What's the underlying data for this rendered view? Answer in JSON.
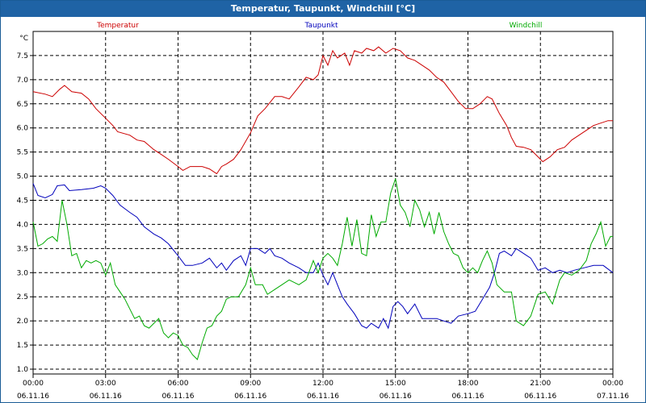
{
  "window": {
    "title": "Temperatur, Taupunkt, Windchill [°C]"
  },
  "chart_data": {
    "type": "line",
    "title": "Temperatur, Taupunkt, Windchill [°C]",
    "ylabel": "°C",
    "xlabel": "",
    "ylim": [
      0.9,
      8.0
    ],
    "xlim": [
      0,
      24
    ],
    "grid": true,
    "legend_placement": "top",
    "y_ticks": [
      1.0,
      1.5,
      2.0,
      2.5,
      3.0,
      3.5,
      4.0,
      4.5,
      5.0,
      5.5,
      6.0,
      6.5,
      7.0,
      7.5
    ],
    "x_ticks": [
      {
        "time": "00:00",
        "date": "06.11.16"
      },
      {
        "time": "03:00",
        "date": "06.11.16"
      },
      {
        "time": "06:00",
        "date": "06.11.16"
      },
      {
        "time": "09:00",
        "date": "06.11.16"
      },
      {
        "time": "12:00",
        "date": "06.11.16"
      },
      {
        "time": "15:00",
        "date": "06.11.16"
      },
      {
        "time": "18:00",
        "date": "06.11.16"
      },
      {
        "time": "21:00",
        "date": "06.11.16"
      },
      {
        "time": "00:00",
        "date": "07.11.16"
      }
    ],
    "series": [
      {
        "name": "Temperatur",
        "color": "#cc0000",
        "points": [
          [
            0,
            6.75
          ],
          [
            0.5,
            6.7
          ],
          [
            0.8,
            6.65
          ],
          [
            1.1,
            6.8
          ],
          [
            1.3,
            6.88
          ],
          [
            1.6,
            6.75
          ],
          [
            2.0,
            6.72
          ],
          [
            2.3,
            6.6
          ],
          [
            2.6,
            6.4
          ],
          [
            3.0,
            6.2
          ],
          [
            3.3,
            6.05
          ],
          [
            3.5,
            5.92
          ],
          [
            4.0,
            5.85
          ],
          [
            4.3,
            5.75
          ],
          [
            4.6,
            5.72
          ],
          [
            5.0,
            5.55
          ],
          [
            5.3,
            5.45
          ],
          [
            5.6,
            5.35
          ],
          [
            6.0,
            5.2
          ],
          [
            6.2,
            5.12
          ],
          [
            6.5,
            5.2
          ],
          [
            7.0,
            5.2
          ],
          [
            7.3,
            5.15
          ],
          [
            7.6,
            5.05
          ],
          [
            7.8,
            5.2
          ],
          [
            8.0,
            5.25
          ],
          [
            8.3,
            5.35
          ],
          [
            8.6,
            5.55
          ],
          [
            9.0,
            5.9
          ],
          [
            9.3,
            6.25
          ],
          [
            9.6,
            6.4
          ],
          [
            10.0,
            6.65
          ],
          [
            10.3,
            6.65
          ],
          [
            10.6,
            6.6
          ],
          [
            11.0,
            6.85
          ],
          [
            11.3,
            7.05
          ],
          [
            11.6,
            7.0
          ],
          [
            11.8,
            7.1
          ],
          [
            12.0,
            7.5
          ],
          [
            12.2,
            7.3
          ],
          [
            12.4,
            7.6
          ],
          [
            12.6,
            7.45
          ],
          [
            12.9,
            7.55
          ],
          [
            13.1,
            7.3
          ],
          [
            13.3,
            7.6
          ],
          [
            13.6,
            7.55
          ],
          [
            13.8,
            7.65
          ],
          [
            14.1,
            7.6
          ],
          [
            14.3,
            7.68
          ],
          [
            14.6,
            7.55
          ],
          [
            14.9,
            7.65
          ],
          [
            15.2,
            7.6
          ],
          [
            15.5,
            7.45
          ],
          [
            15.8,
            7.4
          ],
          [
            16.1,
            7.3
          ],
          [
            16.4,
            7.2
          ],
          [
            16.7,
            7.05
          ],
          [
            17.0,
            6.95
          ],
          [
            17.3,
            6.75
          ],
          [
            17.6,
            6.55
          ],
          [
            17.9,
            6.4
          ],
          [
            18.2,
            6.4
          ],
          [
            18.5,
            6.5
          ],
          [
            18.8,
            6.65
          ],
          [
            19.0,
            6.6
          ],
          [
            19.3,
            6.3
          ],
          [
            19.6,
            6.05
          ],
          [
            19.8,
            5.8
          ],
          [
            20.0,
            5.62
          ],
          [
            20.3,
            5.6
          ],
          [
            20.6,
            5.55
          ],
          [
            20.9,
            5.4
          ],
          [
            21.1,
            5.3
          ],
          [
            21.4,
            5.4
          ],
          [
            21.7,
            5.55
          ],
          [
            22.0,
            5.6
          ],
          [
            22.3,
            5.75
          ],
          [
            22.6,
            5.85
          ],
          [
            22.9,
            5.95
          ],
          [
            23.2,
            6.05
          ],
          [
            23.5,
            6.1
          ],
          [
            23.8,
            6.15
          ],
          [
            24.0,
            6.15
          ]
        ]
      },
      {
        "name": "Taupunkt",
        "color": "#0000bb",
        "points": [
          [
            0,
            4.85
          ],
          [
            0.2,
            4.6
          ],
          [
            0.5,
            4.55
          ],
          [
            0.8,
            4.62
          ],
          [
            1.0,
            4.8
          ],
          [
            1.3,
            4.82
          ],
          [
            1.5,
            4.7
          ],
          [
            2.0,
            4.72
          ],
          [
            2.5,
            4.75
          ],
          [
            2.8,
            4.8
          ],
          [
            3.0,
            4.75
          ],
          [
            3.3,
            4.6
          ],
          [
            3.6,
            4.4
          ],
          [
            4.0,
            4.25
          ],
          [
            4.3,
            4.15
          ],
          [
            4.6,
            3.95
          ],
          [
            5.0,
            3.8
          ],
          [
            5.3,
            3.72
          ],
          [
            5.6,
            3.6
          ],
          [
            6.0,
            3.35
          ],
          [
            6.3,
            3.15
          ],
          [
            6.6,
            3.15
          ],
          [
            7.0,
            3.2
          ],
          [
            7.3,
            3.3
          ],
          [
            7.6,
            3.1
          ],
          [
            7.8,
            3.2
          ],
          [
            8.0,
            3.05
          ],
          [
            8.3,
            3.25
          ],
          [
            8.6,
            3.35
          ],
          [
            8.8,
            3.15
          ],
          [
            9.0,
            3.5
          ],
          [
            9.3,
            3.5
          ],
          [
            9.6,
            3.4
          ],
          [
            9.8,
            3.5
          ],
          [
            10.0,
            3.35
          ],
          [
            10.3,
            3.3
          ],
          [
            10.6,
            3.2
          ],
          [
            11.0,
            3.1
          ],
          [
            11.3,
            3.0
          ],
          [
            11.6,
            3.0
          ],
          [
            11.8,
            3.2
          ],
          [
            12.0,
            2.95
          ],
          [
            12.2,
            2.75
          ],
          [
            12.4,
            3.0
          ],
          [
            12.6,
            2.75
          ],
          [
            12.8,
            2.5
          ],
          [
            13.0,
            2.35
          ],
          [
            13.3,
            2.15
          ],
          [
            13.6,
            1.9
          ],
          [
            13.8,
            1.85
          ],
          [
            14.0,
            1.95
          ],
          [
            14.3,
            1.85
          ],
          [
            14.5,
            2.05
          ],
          [
            14.7,
            1.85
          ],
          [
            14.9,
            2.3
          ],
          [
            15.1,
            2.4
          ],
          [
            15.3,
            2.3
          ],
          [
            15.5,
            2.15
          ],
          [
            15.8,
            2.35
          ],
          [
            16.1,
            2.05
          ],
          [
            16.4,
            2.05
          ],
          [
            16.7,
            2.05
          ],
          [
            17.0,
            2.0
          ],
          [
            17.3,
            1.95
          ],
          [
            17.6,
            2.1
          ],
          [
            18.0,
            2.15
          ],
          [
            18.3,
            2.2
          ],
          [
            18.6,
            2.45
          ],
          [
            18.9,
            2.7
          ],
          [
            19.1,
            3.0
          ],
          [
            19.3,
            3.4
          ],
          [
            19.5,
            3.45
          ],
          [
            19.8,
            3.35
          ],
          [
            20.0,
            3.5
          ],
          [
            20.3,
            3.4
          ],
          [
            20.6,
            3.3
          ],
          [
            20.9,
            3.05
          ],
          [
            21.2,
            3.1
          ],
          [
            21.5,
            3.0
          ],
          [
            21.8,
            3.05
          ],
          [
            22.1,
            3.0
          ],
          [
            22.4,
            3.05
          ],
          [
            22.8,
            3.1
          ],
          [
            23.2,
            3.15
          ],
          [
            23.6,
            3.15
          ],
          [
            24.0,
            3.0
          ]
        ]
      },
      {
        "name": "Windchill",
        "color": "#00aa00",
        "points": [
          [
            0,
            4.05
          ],
          [
            0.2,
            3.55
          ],
          [
            0.4,
            3.6
          ],
          [
            0.6,
            3.7
          ],
          [
            0.8,
            3.75
          ],
          [
            1.0,
            3.65
          ],
          [
            1.2,
            4.5
          ],
          [
            1.4,
            4.0
          ],
          [
            1.6,
            3.35
          ],
          [
            1.8,
            3.4
          ],
          [
            2.0,
            3.1
          ],
          [
            2.2,
            3.25
          ],
          [
            2.4,
            3.2
          ],
          [
            2.6,
            3.25
          ],
          [
            2.8,
            3.2
          ],
          [
            3.0,
            2.95
          ],
          [
            3.2,
            3.2
          ],
          [
            3.4,
            2.75
          ],
          [
            3.6,
            2.6
          ],
          [
            3.8,
            2.45
          ],
          [
            4.0,
            2.25
          ],
          [
            4.2,
            2.05
          ],
          [
            4.4,
            2.1
          ],
          [
            4.6,
            1.9
          ],
          [
            4.8,
            1.85
          ],
          [
            5.0,
            1.95
          ],
          [
            5.2,
            2.05
          ],
          [
            5.4,
            1.75
          ],
          [
            5.6,
            1.65
          ],
          [
            5.8,
            1.75
          ],
          [
            6.0,
            1.7
          ],
          [
            6.2,
            1.5
          ],
          [
            6.4,
            1.45
          ],
          [
            6.6,
            1.3
          ],
          [
            6.8,
            1.2
          ],
          [
            7.0,
            1.55
          ],
          [
            7.2,
            1.85
          ],
          [
            7.4,
            1.9
          ],
          [
            7.6,
            2.1
          ],
          [
            7.8,
            2.2
          ],
          [
            8.0,
            2.45
          ],
          [
            8.2,
            2.5
          ],
          [
            8.5,
            2.5
          ],
          [
            8.8,
            2.75
          ],
          [
            9.0,
            3.1
          ],
          [
            9.2,
            2.75
          ],
          [
            9.5,
            2.75
          ],
          [
            9.7,
            2.55
          ],
          [
            10.0,
            2.65
          ],
          [
            10.3,
            2.75
          ],
          [
            10.6,
            2.85
          ],
          [
            11.0,
            2.75
          ],
          [
            11.3,
            2.85
          ],
          [
            11.6,
            3.25
          ],
          [
            11.8,
            3.0
          ],
          [
            12.0,
            3.3
          ],
          [
            12.2,
            3.4
          ],
          [
            12.4,
            3.3
          ],
          [
            12.6,
            3.15
          ],
          [
            12.8,
            3.6
          ],
          [
            13.0,
            4.15
          ],
          [
            13.2,
            3.55
          ],
          [
            13.4,
            4.1
          ],
          [
            13.6,
            3.4
          ],
          [
            13.8,
            3.35
          ],
          [
            14.0,
            4.2
          ],
          [
            14.2,
            3.75
          ],
          [
            14.4,
            4.05
          ],
          [
            14.6,
            4.05
          ],
          [
            14.8,
            4.65
          ],
          [
            15.0,
            4.95
          ],
          [
            15.2,
            4.4
          ],
          [
            15.4,
            4.25
          ],
          [
            15.6,
            3.95
          ],
          [
            15.8,
            4.5
          ],
          [
            16.0,
            4.3
          ],
          [
            16.2,
            3.95
          ],
          [
            16.4,
            4.25
          ],
          [
            16.6,
            3.8
          ],
          [
            16.8,
            4.25
          ],
          [
            17.0,
            3.85
          ],
          [
            17.2,
            3.6
          ],
          [
            17.4,
            3.4
          ],
          [
            17.6,
            3.35
          ],
          [
            17.8,
            3.1
          ],
          [
            18.0,
            3.0
          ],
          [
            18.2,
            3.1
          ],
          [
            18.4,
            3.0
          ],
          [
            18.6,
            3.25
          ],
          [
            18.8,
            3.45
          ],
          [
            19.0,
            3.2
          ],
          [
            19.2,
            2.75
          ],
          [
            19.5,
            2.6
          ],
          [
            19.8,
            2.6
          ],
          [
            20.0,
            2.0
          ],
          [
            20.3,
            1.9
          ],
          [
            20.6,
            2.1
          ],
          [
            20.9,
            2.55
          ],
          [
            21.2,
            2.6
          ],
          [
            21.5,
            2.35
          ],
          [
            21.8,
            2.85
          ],
          [
            22.0,
            3.0
          ],
          [
            22.3,
            2.95
          ],
          [
            22.6,
            3.05
          ],
          [
            22.9,
            3.25
          ],
          [
            23.1,
            3.6
          ],
          [
            23.3,
            3.8
          ],
          [
            23.5,
            4.05
          ],
          [
            23.7,
            3.55
          ],
          [
            23.9,
            3.75
          ],
          [
            24.0,
            3.75
          ]
        ]
      }
    ]
  }
}
